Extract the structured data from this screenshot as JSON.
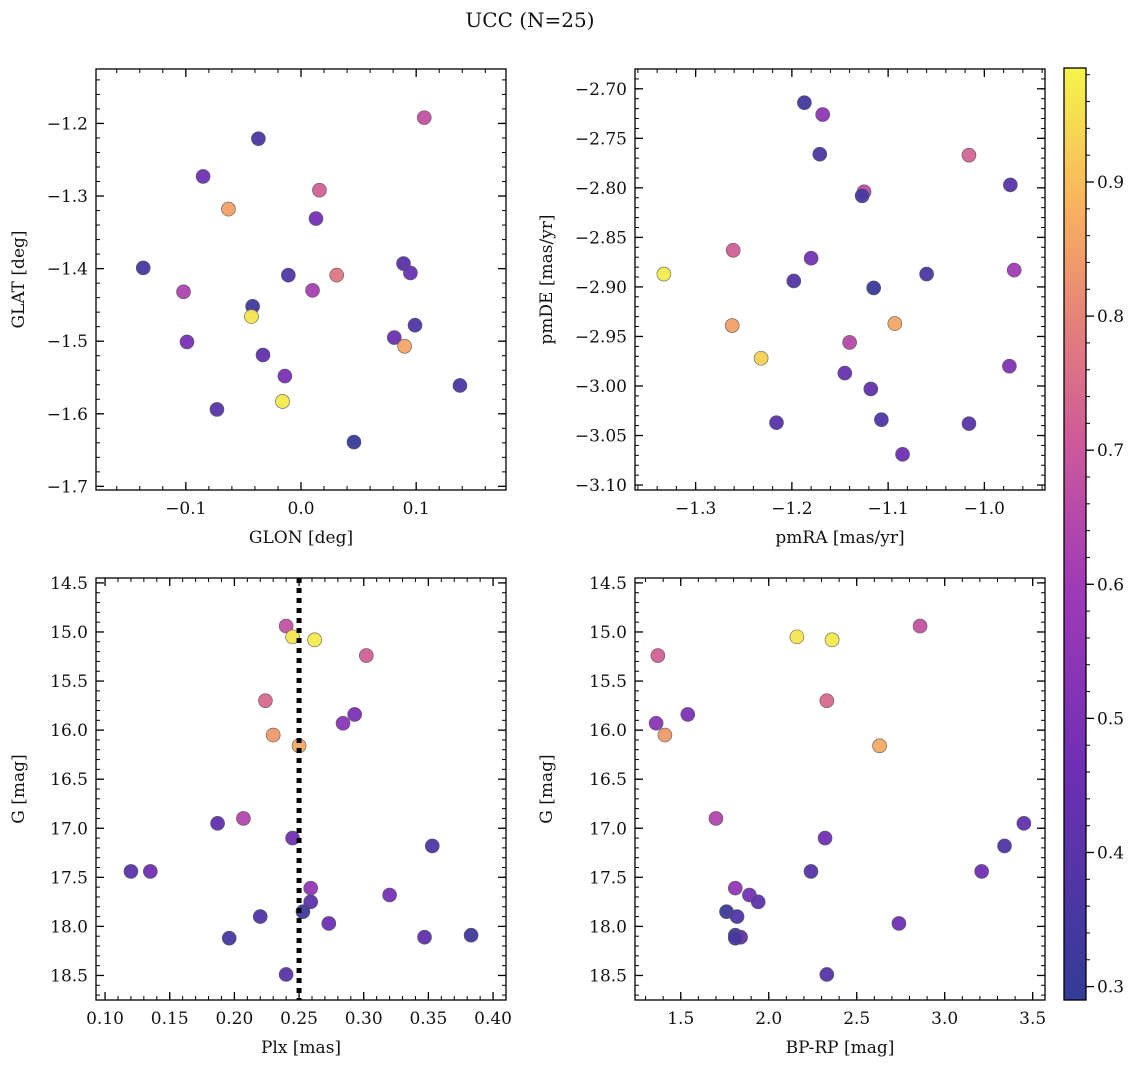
{
  "figure": {
    "title": "UCC (N=25)"
  },
  "colorbar": {
    "cmap": "plasma",
    "vmin": 0.29,
    "vmax": 0.985,
    "ticks": [
      "0.3",
      "0.4",
      "0.5",
      "0.6",
      "0.7",
      "0.8",
      "0.9"
    ],
    "tick_values": [
      0.3,
      0.4,
      0.5,
      0.6,
      0.7,
      0.8,
      0.9
    ]
  },
  "chart_data": [
    {
      "type": "scatter",
      "id": "glon-glat",
      "xlabel": "GLON [deg]",
      "ylabel": "GLAT [deg]",
      "xlim": [
        -0.178,
        0.178
      ],
      "ylim": [
        -1.705,
        -1.125
      ],
      "inverted_y": false,
      "xticks": [
        -0.1,
        0.0,
        0.1
      ],
      "xticklabels": [
        "−0.1",
        "0.0",
        "0.1"
      ],
      "yticks": [
        -1.2,
        -1.3,
        -1.4,
        -1.5,
        -1.6,
        -1.7
      ],
      "yticklabels": [
        "−1.2",
        "−1.3",
        "−1.4",
        "−1.5",
        "−1.6",
        "−1.7"
      ],
      "points": [
        {
          "x": 0.107,
          "y": -1.192,
          "c": 0.68
        },
        {
          "x": -0.037,
          "y": -1.221,
          "c": 0.36
        },
        {
          "x": -0.085,
          "y": -1.273,
          "c": 0.47
        },
        {
          "x": 0.016,
          "y": -1.292,
          "c": 0.72
        },
        {
          "x": -0.063,
          "y": -1.318,
          "c": 0.85
        },
        {
          "x": 0.013,
          "y": -1.331,
          "c": 0.48
        },
        {
          "x": -0.137,
          "y": -1.399,
          "c": 0.35
        },
        {
          "x": 0.089,
          "y": -1.393,
          "c": 0.4
        },
        {
          "x": 0.095,
          "y": -1.406,
          "c": 0.44
        },
        {
          "x": -0.011,
          "y": -1.409,
          "c": 0.38
        },
        {
          "x": 0.031,
          "y": -1.409,
          "c": 0.77
        },
        {
          "x": -0.102,
          "y": -1.432,
          "c": 0.63
        },
        {
          "x": 0.01,
          "y": -1.43,
          "c": 0.62
        },
        {
          "x": -0.042,
          "y": -1.452,
          "c": 0.33
        },
        {
          "x": -0.043,
          "y": -1.466,
          "c": 0.96
        },
        {
          "x": 0.099,
          "y": -1.478,
          "c": 0.37
        },
        {
          "x": 0.081,
          "y": -1.495,
          "c": 0.45
        },
        {
          "x": -0.099,
          "y": -1.501,
          "c": 0.49
        },
        {
          "x": 0.09,
          "y": -1.507,
          "c": 0.86
        },
        {
          "x": -0.033,
          "y": -1.519,
          "c": 0.42
        },
        {
          "x": -0.014,
          "y": -1.548,
          "c": 0.5
        },
        {
          "x": 0.138,
          "y": -1.561,
          "c": 0.36
        },
        {
          "x": -0.016,
          "y": -1.583,
          "c": 0.97
        },
        {
          "x": -0.073,
          "y": -1.594,
          "c": 0.39
        },
        {
          "x": 0.046,
          "y": -1.639,
          "c": 0.3
        }
      ]
    },
    {
      "type": "scatter",
      "id": "pmra-pmde",
      "xlabel": "pmRA [mas/yr]",
      "ylabel": "pmDE [mas/yr]",
      "xlim": [
        -1.363,
        -0.937
      ],
      "ylim": [
        -3.105,
        -2.68
      ],
      "inverted_y": false,
      "xticks": [
        -1.3,
        -1.2,
        -1.1,
        -1.0
      ],
      "xticklabels": [
        "−1.3",
        "−1.2",
        "−1.1",
        "−1.0"
      ],
      "yticks": [
        -2.7,
        -2.75,
        -2.8,
        -2.85,
        -2.9,
        -2.95,
        -3.0,
        -3.05,
        -3.1
      ],
      "yticklabels": [
        "−2.70",
        "−2.75",
        "−2.80",
        "−2.85",
        "−2.90",
        "−2.95",
        "−3.00",
        "−3.05",
        "−3.10"
      ],
      "points": [
        {
          "x": -1.187,
          "y": -2.714,
          "c": 0.33
        },
        {
          "x": -1.168,
          "y": -2.726,
          "c": 0.55
        },
        {
          "x": -1.171,
          "y": -2.766,
          "c": 0.36
        },
        {
          "x": -1.016,
          "y": -2.767,
          "c": 0.73
        },
        {
          "x": -0.973,
          "y": -2.797,
          "c": 0.4
        },
        {
          "x": -1.125,
          "y": -2.804,
          "c": 0.66
        },
        {
          "x": -1.127,
          "y": -2.808,
          "c": 0.35
        },
        {
          "x": -1.261,
          "y": -2.863,
          "c": 0.72
        },
        {
          "x": -1.18,
          "y": -2.871,
          "c": 0.48
        },
        {
          "x": -0.969,
          "y": -2.883,
          "c": 0.6
        },
        {
          "x": -1.333,
          "y": -2.887,
          "c": 0.97
        },
        {
          "x": -1.06,
          "y": -2.887,
          "c": 0.36
        },
        {
          "x": -1.198,
          "y": -2.894,
          "c": 0.38
        },
        {
          "x": -1.115,
          "y": -2.901,
          "c": 0.31
        },
        {
          "x": -1.093,
          "y": -2.937,
          "c": 0.86
        },
        {
          "x": -1.262,
          "y": -2.939,
          "c": 0.85
        },
        {
          "x": -1.14,
          "y": -2.956,
          "c": 0.65
        },
        {
          "x": -1.232,
          "y": -2.972,
          "c": 0.93
        },
        {
          "x": -0.974,
          "y": -2.98,
          "c": 0.52
        },
        {
          "x": -1.145,
          "y": -2.987,
          "c": 0.44
        },
        {
          "x": -1.118,
          "y": -3.003,
          "c": 0.42
        },
        {
          "x": -1.107,
          "y": -3.034,
          "c": 0.37
        },
        {
          "x": -1.216,
          "y": -3.037,
          "c": 0.4
        },
        {
          "x": -1.016,
          "y": -3.038,
          "c": 0.39
        },
        {
          "x": -1.085,
          "y": -3.069,
          "c": 0.46
        }
      ]
    },
    {
      "type": "scatter",
      "id": "plx-g",
      "xlabel": "Plx [mas]",
      "ylabel": "G [mag]",
      "xlim": [
        0.093,
        0.41
      ],
      "ylim": [
        18.75,
        14.45
      ],
      "inverted_y": true,
      "xticks": [
        0.1,
        0.15,
        0.2,
        0.25,
        0.3,
        0.35,
        0.4
      ],
      "xticklabels": [
        "0.10",
        "0.15",
        "0.20",
        "0.25",
        "0.30",
        "0.35",
        "0.40"
      ],
      "yticks": [
        14.5,
        15.0,
        15.5,
        16.0,
        16.5,
        17.0,
        17.5,
        18.0,
        18.5
      ],
      "yticklabels": [
        "14.5",
        "15.0",
        "15.5",
        "16.0",
        "16.5",
        "17.0",
        "17.5",
        "18.0",
        "18.5"
      ],
      "vline": {
        "x": 0.25,
        "style": "dotted",
        "color": "#000000"
      },
      "points": [
        {
          "x": 0.24,
          "y": 14.94,
          "c": 0.68
        },
        {
          "x": 0.245,
          "y": 15.05,
          "c": 0.96
        },
        {
          "x": 0.262,
          "y": 15.08,
          "c": 0.97
        },
        {
          "x": 0.302,
          "y": 15.24,
          "c": 0.72
        },
        {
          "x": 0.224,
          "y": 15.7,
          "c": 0.74
        },
        {
          "x": 0.293,
          "y": 15.84,
          "c": 0.5
        },
        {
          "x": 0.284,
          "y": 15.93,
          "c": 0.54
        },
        {
          "x": 0.23,
          "y": 16.05,
          "c": 0.84
        },
        {
          "x": 0.25,
          "y": 16.16,
          "c": 0.87
        },
        {
          "x": 0.207,
          "y": 16.9,
          "c": 0.64
        },
        {
          "x": 0.187,
          "y": 16.95,
          "c": 0.42
        },
        {
          "x": 0.245,
          "y": 17.1,
          "c": 0.47
        },
        {
          "x": 0.353,
          "y": 17.18,
          "c": 0.37
        },
        {
          "x": 0.12,
          "y": 17.44,
          "c": 0.4
        },
        {
          "x": 0.135,
          "y": 17.44,
          "c": 0.47
        },
        {
          "x": 0.259,
          "y": 17.61,
          "c": 0.56
        },
        {
          "x": 0.32,
          "y": 17.68,
          "c": 0.48
        },
        {
          "x": 0.259,
          "y": 17.75,
          "c": 0.41
        },
        {
          "x": 0.253,
          "y": 17.85,
          "c": 0.32
        },
        {
          "x": 0.22,
          "y": 17.9,
          "c": 0.37
        },
        {
          "x": 0.273,
          "y": 17.97,
          "c": 0.46
        },
        {
          "x": 0.383,
          "y": 18.09,
          "c": 0.33
        },
        {
          "x": 0.347,
          "y": 18.11,
          "c": 0.42
        },
        {
          "x": 0.196,
          "y": 18.12,
          "c": 0.35
        },
        {
          "x": 0.24,
          "y": 18.49,
          "c": 0.39
        }
      ]
    },
    {
      "type": "scatter",
      "id": "bprp-g",
      "xlabel": "BP-RP [mag]",
      "ylabel": "G [mag]",
      "xlim": [
        1.24,
        3.57
      ],
      "ylim": [
        18.75,
        14.45
      ],
      "inverted_y": true,
      "xticks": [
        1.5,
        2.0,
        2.5,
        3.0,
        3.5
      ],
      "xticklabels": [
        "1.5",
        "2.0",
        "2.5",
        "3.0",
        "3.5"
      ],
      "yticks": [
        14.5,
        15.0,
        15.5,
        16.0,
        16.5,
        17.0,
        17.5,
        18.0,
        18.5
      ],
      "yticklabels": [
        "14.5",
        "15.0",
        "15.5",
        "16.0",
        "16.5",
        "17.0",
        "17.5",
        "18.0",
        "18.5"
      ],
      "points": [
        {
          "x": 2.86,
          "y": 14.94,
          "c": 0.68
        },
        {
          "x": 2.16,
          "y": 15.05,
          "c": 0.96
        },
        {
          "x": 2.36,
          "y": 15.08,
          "c": 0.97
        },
        {
          "x": 1.37,
          "y": 15.24,
          "c": 0.72
        },
        {
          "x": 2.33,
          "y": 15.7,
          "c": 0.74
        },
        {
          "x": 1.54,
          "y": 15.84,
          "c": 0.5
        },
        {
          "x": 1.36,
          "y": 15.93,
          "c": 0.54
        },
        {
          "x": 1.41,
          "y": 16.05,
          "c": 0.84
        },
        {
          "x": 2.63,
          "y": 16.16,
          "c": 0.87
        },
        {
          "x": 1.7,
          "y": 16.9,
          "c": 0.64
        },
        {
          "x": 3.45,
          "y": 16.95,
          "c": 0.42
        },
        {
          "x": 2.32,
          "y": 17.1,
          "c": 0.47
        },
        {
          "x": 3.34,
          "y": 17.18,
          "c": 0.37
        },
        {
          "x": 2.24,
          "y": 17.44,
          "c": 0.4
        },
        {
          "x": 3.21,
          "y": 17.44,
          "c": 0.47
        },
        {
          "x": 1.81,
          "y": 17.61,
          "c": 0.56
        },
        {
          "x": 1.89,
          "y": 17.68,
          "c": 0.48
        },
        {
          "x": 1.94,
          "y": 17.75,
          "c": 0.41
        },
        {
          "x": 1.76,
          "y": 17.85,
          "c": 0.32
        },
        {
          "x": 1.82,
          "y": 17.9,
          "c": 0.37
        },
        {
          "x": 2.74,
          "y": 17.97,
          "c": 0.46
        },
        {
          "x": 1.81,
          "y": 18.09,
          "c": 0.33
        },
        {
          "x": 1.84,
          "y": 18.11,
          "c": 0.42
        },
        {
          "x": 1.81,
          "y": 18.12,
          "c": 0.35
        },
        {
          "x": 2.33,
          "y": 18.49,
          "c": 0.39
        }
      ]
    }
  ]
}
